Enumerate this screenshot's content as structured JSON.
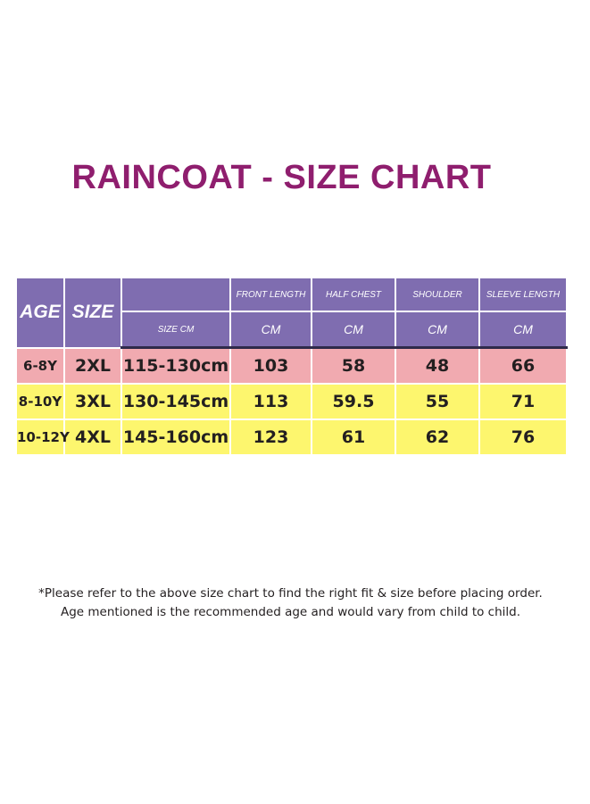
{
  "title": "RAINCOAT - SIZE CHART",
  "table": {
    "headers": {
      "age": "AGE",
      "size": "SIZE",
      "size_cm": "SIZE CM",
      "front_length": "FRONT LENGTH",
      "half_chest": "HALF CHEST",
      "shoulder": "SHOULDER",
      "sleeve_length": "SLEEVE LENGTH",
      "unit": "CM"
    },
    "rows": [
      {
        "age": "6-8Y",
        "size": "2XL",
        "size_cm": "115-130cm",
        "front_length": "103",
        "half_chest": "58",
        "shoulder": "48",
        "sleeve_length": "66",
        "color": "#f1aab0"
      },
      {
        "age": "8-10Y",
        "size": "3XL",
        "size_cm": "130-145cm",
        "front_length": "113",
        "half_chest": "59.5",
        "shoulder": "55",
        "sleeve_length": "71",
        "color": "#fdf66e"
      },
      {
        "age": "10-12Y",
        "size": "4XL",
        "size_cm": "145-160cm",
        "front_length": "123",
        "half_chest": "61",
        "shoulder": "62",
        "sleeve_length": "76",
        "color": "#fdf66e"
      }
    ]
  },
  "notes": [
    "*Please refer to the above size chart to find the right fit & size before placing order.",
    "Age mentioned is the recommended age and would vary from child to child."
  ],
  "colors": {
    "title": "#8f1e6e",
    "header_bg": "#7f6db0",
    "pink_row": "#f1aab0",
    "yellow_row": "#fdf66e"
  }
}
